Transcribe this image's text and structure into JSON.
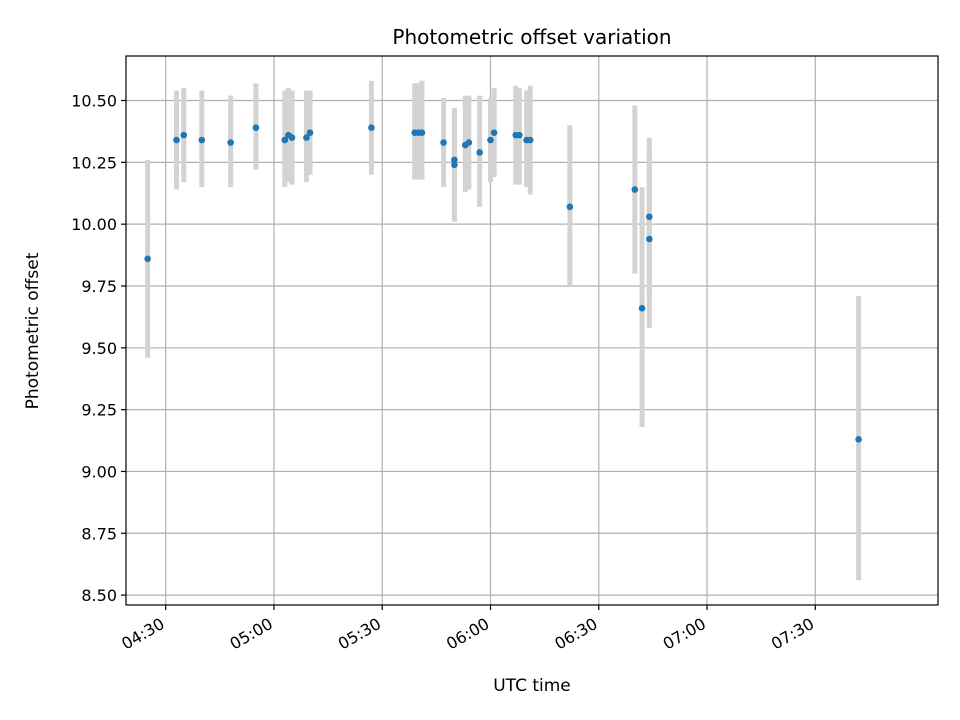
{
  "chart_data": {
    "type": "scatter",
    "title": "Photometric offset variation",
    "xlabel": "UTC time",
    "ylabel": "Photometric offset",
    "x_ticks": [
      "04:30",
      "05:00",
      "05:30",
      "06:00",
      "06:30",
      "07:00",
      "07:30"
    ],
    "y_ticks": [
      "8.50",
      "8.75",
      "9.00",
      "9.25",
      "9.50",
      "9.75",
      "10.00",
      "10.25",
      "10.50"
    ],
    "xlim": [
      "04:19",
      "08:04"
    ],
    "ylim": [
      8.46,
      10.68
    ],
    "grid": true,
    "colors": {
      "marker": "#1f77b4",
      "errorbar": "#d3d3d3",
      "grid": "#b0b0b0"
    },
    "points": [
      {
        "x": "04:25",
        "y": 9.86,
        "ylow": 9.46,
        "yhigh": 10.26
      },
      {
        "x": "04:33",
        "y": 10.34,
        "ylow": 10.14,
        "yhigh": 10.54
      },
      {
        "x": "04:35",
        "y": 10.36,
        "ylow": 10.17,
        "yhigh": 10.55
      },
      {
        "x": "04:40",
        "y": 10.34,
        "ylow": 10.15,
        "yhigh": 10.54
      },
      {
        "x": "04:48",
        "y": 10.33,
        "ylow": 10.15,
        "yhigh": 10.52
      },
      {
        "x": "04:55",
        "y": 10.39,
        "ylow": 10.22,
        "yhigh": 10.57
      },
      {
        "x": "05:03",
        "y": 10.34,
        "ylow": 10.15,
        "yhigh": 10.54
      },
      {
        "x": "05:04",
        "y": 10.36,
        "ylow": 10.17,
        "yhigh": 10.55
      },
      {
        "x": "05:05",
        "y": 10.35,
        "ylow": 10.16,
        "yhigh": 10.54
      },
      {
        "x": "05:09",
        "y": 10.35,
        "ylow": 10.17,
        "yhigh": 10.54
      },
      {
        "x": "05:10",
        "y": 10.37,
        "ylow": 10.2,
        "yhigh": 10.54
      },
      {
        "x": "05:27",
        "y": 10.39,
        "ylow": 10.2,
        "yhigh": 10.58
      },
      {
        "x": "05:39",
        "y": 10.37,
        "ylow": 10.18,
        "yhigh": 10.57
      },
      {
        "x": "05:40",
        "y": 10.37,
        "ylow": 10.18,
        "yhigh": 10.57
      },
      {
        "x": "05:41",
        "y": 10.37,
        "ylow": 10.18,
        "yhigh": 10.58
      },
      {
        "x": "05:47",
        "y": 10.33,
        "ylow": 10.15,
        "yhigh": 10.51
      },
      {
        "x": "05:50",
        "y": 10.26,
        "ylow": 10.01,
        "yhigh": 10.47
      },
      {
        "x": "05:50",
        "y": 10.24,
        "ylow": 10.02,
        "yhigh": 10.46
      },
      {
        "x": "05:53",
        "y": 10.32,
        "ylow": 10.13,
        "yhigh": 10.52
      },
      {
        "x": "05:54",
        "y": 10.33,
        "ylow": 10.14,
        "yhigh": 10.52
      },
      {
        "x": "05:57",
        "y": 10.29,
        "ylow": 10.07,
        "yhigh": 10.52
      },
      {
        "x": "06:00",
        "y": 10.34,
        "ylow": 10.17,
        "yhigh": 10.51
      },
      {
        "x": "06:01",
        "y": 10.37,
        "ylow": 10.19,
        "yhigh": 10.55
      },
      {
        "x": "06:07",
        "y": 10.36,
        "ylow": 10.16,
        "yhigh": 10.56
      },
      {
        "x": "06:08",
        "y": 10.36,
        "ylow": 10.16,
        "yhigh": 10.55
      },
      {
        "x": "06:10",
        "y": 10.34,
        "ylow": 10.15,
        "yhigh": 10.54
      },
      {
        "x": "06:11",
        "y": 10.34,
        "ylow": 10.12,
        "yhigh": 10.56
      },
      {
        "x": "06:22",
        "y": 10.07,
        "ylow": 9.75,
        "yhigh": 10.4
      },
      {
        "x": "06:40",
        "y": 10.14,
        "ylow": 9.8,
        "yhigh": 10.48
      },
      {
        "x": "06:42",
        "y": 9.66,
        "ylow": 9.18,
        "yhigh": 10.15
      },
      {
        "x": "06:44",
        "y": 10.03,
        "ylow": 9.71,
        "yhigh": 10.35
      },
      {
        "x": "06:44",
        "y": 9.94,
        "ylow": 9.58,
        "yhigh": 10.3
      },
      {
        "x": "07:42",
        "y": 9.13,
        "ylow": 8.56,
        "yhigh": 9.71
      }
    ]
  }
}
